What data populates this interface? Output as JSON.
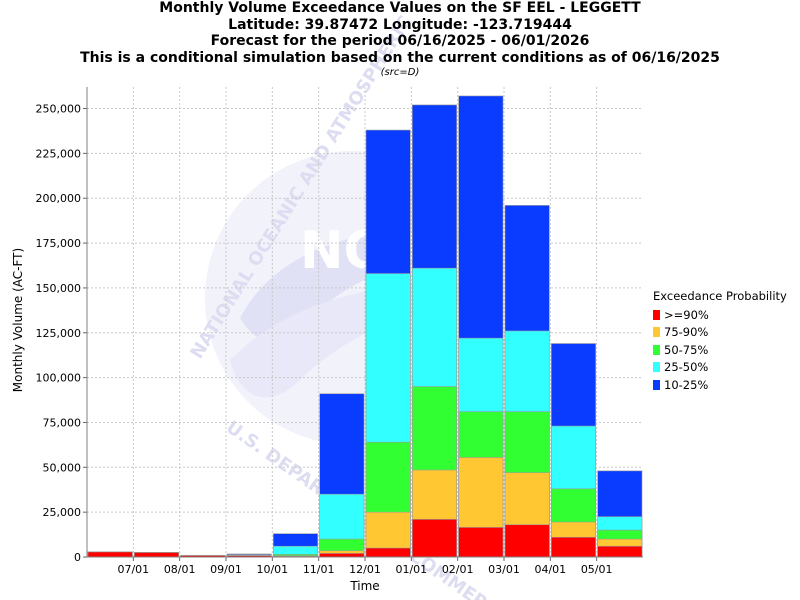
{
  "header": {
    "title": "Monthly Volume Exceedance Values on the SF EEL - LEGGETT",
    "location": "Latitude: 39.87472 Longitude: -123.719444",
    "period": "Forecast for the period 06/16/2025 - 06/01/2026",
    "note": "This is a conditional simulation based on the current conditions as of 06/16/2025",
    "source": "(src=D)"
  },
  "watermark": {
    "arc_text_top": "NATIONAL OCEANIC AND ATMOSPHERIC",
    "arc_text_bottom": "U.S. DEPARTMENT OF COMMERCE",
    "logo_text": "NOAA"
  },
  "legend": {
    "title": "Exceedance Probability",
    "items": [
      {
        "label": ">=90%",
        "color": "#ff0000"
      },
      {
        "label": "75-90%",
        "color": "#ffc832"
      },
      {
        "label": "50-75%",
        "color": "#32ff32"
      },
      {
        "label": "25-50%",
        "color": "#32ffff"
      },
      {
        "label": "10-25%",
        "color": "#0a3cff"
      }
    ]
  },
  "chart_data": {
    "type": "bar",
    "stacked": true,
    "xlabel": "Time",
    "ylabel": "Monthly Volume (AC-FT)",
    "ylim": [
      0,
      262000
    ],
    "yticks": [
      0,
      25000,
      50000,
      75000,
      100000,
      125000,
      150000,
      175000,
      200000,
      225000,
      250000
    ],
    "ytick_labels": [
      "0",
      "25,000",
      "50,000",
      "75,000",
      "100,000",
      "125,000",
      "150,000",
      "175,000",
      "200,000",
      "225,000",
      "250,000"
    ],
    "xtick_labels": [
      "07/01",
      "08/01",
      "09/01",
      "10/01",
      "11/01",
      "12/01",
      "01/01",
      "02/01",
      "03/01",
      "04/01",
      "05/01"
    ],
    "grid": true,
    "legend_position": "right",
    "categories": [
      "06/2025",
      "07/2025",
      "08/2025",
      "09/2025",
      "10/2025",
      "11/2025",
      "12/2025",
      "01/2026",
      "02/2026",
      "03/2026",
      "04/2026",
      "05/2026"
    ],
    "totals": [
      [
        2800,
        2800,
        2800,
        2800,
        2800
      ],
      [
        2500,
        2500,
        2500,
        2500,
        2500
      ],
      [
        800,
        800,
        800,
        800,
        800
      ],
      [
        700,
        700,
        1000,
        1300,
        1700
      ],
      [
        500,
        700,
        1500,
        6000,
        13000
      ],
      [
        2000,
        3500,
        10000,
        35000,
        91000
      ],
      [
        5000,
        25000,
        64000,
        158000,
        238000
      ],
      [
        21000,
        48500,
        95000,
        161000,
        252000
      ],
      [
        16500,
        55500,
        81000,
        122000,
        257000
      ],
      [
        18000,
        47000,
        81000,
        126000,
        196000
      ],
      [
        11000,
        19500,
        38000,
        73000,
        119000
      ],
      [
        6000,
        10000,
        15000,
        22500,
        48000
      ]
    ]
  }
}
